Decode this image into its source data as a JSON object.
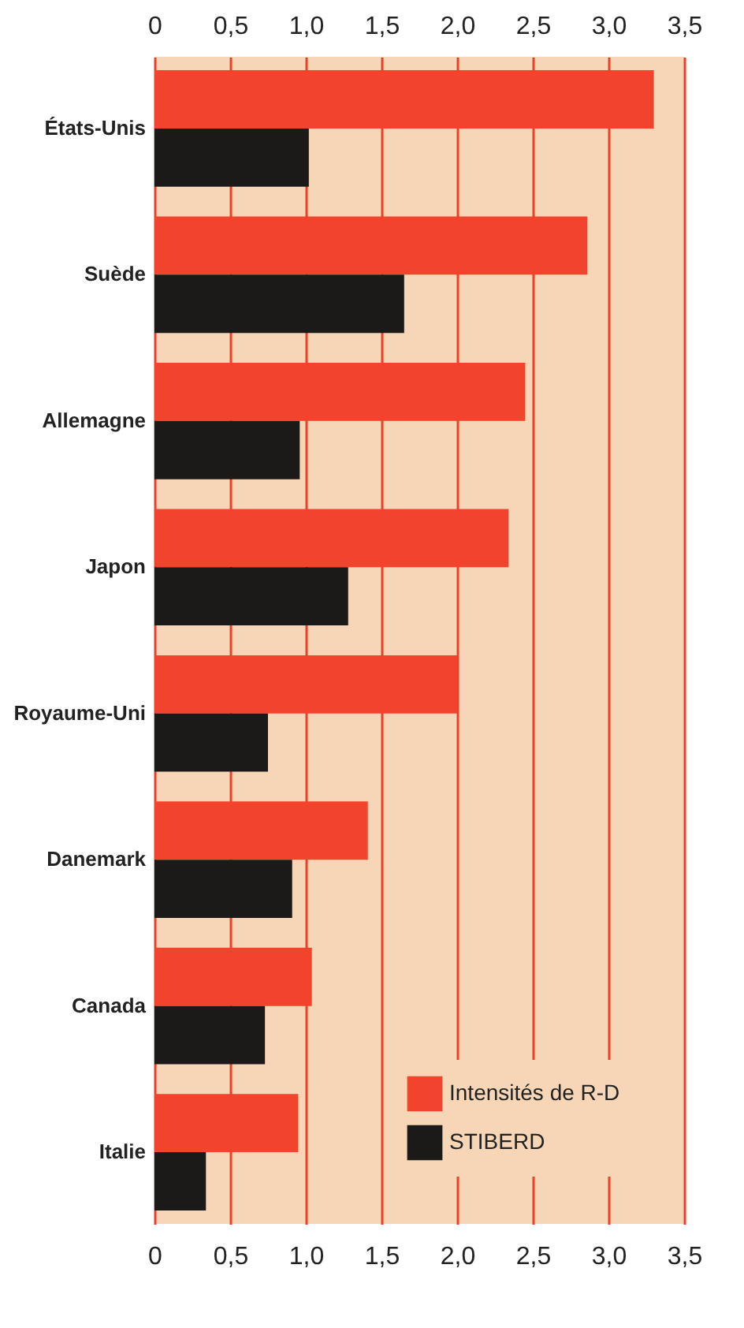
{
  "chart_data": {
    "type": "bar",
    "orientation": "horizontal",
    "categories": [
      "États-Unis",
      "Suède",
      "Allemagne",
      "Japon",
      "Royaume-Uni",
      "Danemark",
      "Canada",
      "Italie"
    ],
    "series": [
      {
        "name": "Intensités de R-D",
        "color": "#f2432d",
        "values": [
          3.3,
          2.86,
          2.45,
          2.34,
          2.0,
          1.41,
          1.04,
          0.95
        ]
      },
      {
        "name": "STIBERD",
        "color": "#1c1a19",
        "values": [
          1.02,
          1.65,
          0.96,
          1.28,
          0.75,
          0.91,
          0.73,
          0.34
        ]
      }
    ],
    "xlim": [
      0,
      3.5
    ],
    "xticks": [
      0,
      {
        "value": 0.5,
        "label": "0,5"
      },
      {
        "value": 1,
        "label": "1,0"
      },
      {
        "value": 1.5,
        "label": "1,5"
      },
      {
        "value": 2,
        "label": "2,0"
      },
      {
        "value": 2.5,
        "label": "2,5"
      },
      {
        "value": 3,
        "label": "3,0"
      },
      {
        "value": 3.5,
        "label": "3,5"
      }
    ],
    "x2lim": [
      0,
      3.5
    ],
    "x2ticks": [
      0,
      {
        "value": 0.5,
        "label": "0,5"
      },
      {
        "value": 1,
        "label": "1,0"
      },
      {
        "value": 1.5,
        "label": "1,5"
      },
      {
        "value": 2,
        "label": "2,0"
      },
      {
        "value": 2.5,
        "label": "2,5"
      },
      {
        "value": 3,
        "label": "3,0"
      },
      {
        "value": 3.5,
        "label": "3,5"
      }
    ],
    "grid": "x",
    "legend": "bottom right"
  }
}
